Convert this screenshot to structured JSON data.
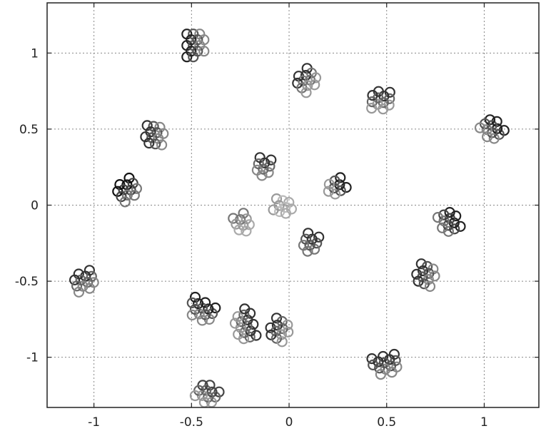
{
  "chart_data": {
    "type": "scatter",
    "title": "",
    "xlabel": "",
    "ylabel": "",
    "xlim": [
      -1.24,
      1.28
    ],
    "ylim": [
      -1.33,
      1.33
    ],
    "grid": true,
    "marker": "open-circle",
    "xticks": [
      {
        "value": -1,
        "label": "-1"
      },
      {
        "value": -0.5,
        "label": "-0.5"
      },
      {
        "value": 0,
        "label": "0"
      },
      {
        "value": 0.5,
        "label": "0.5"
      },
      {
        "value": 1,
        "label": "1"
      }
    ],
    "yticks": [
      {
        "value": 1,
        "label": "1"
      },
      {
        "value": 0.5,
        "label": "0.5"
      },
      {
        "value": 0,
        "label": "0"
      },
      {
        "value": -0.5,
        "label": "-0.5"
      },
      {
        "value": -1,
        "label": "-1"
      }
    ],
    "clusters": [
      {
        "center": [
          -0.48,
          1.05
        ],
        "count": 14,
        "colors": [
          "#222222",
          "#555555",
          "#888888"
        ]
      },
      {
        "center": [
          0.09,
          0.82
        ],
        "count": 12,
        "colors": [
          "#333333",
          "#777777",
          "#999999"
        ]
      },
      {
        "center": [
          0.47,
          0.69
        ],
        "count": 12,
        "colors": [
          "#333333",
          "#666666",
          "#999999"
        ]
      },
      {
        "center": [
          1.04,
          0.5
        ],
        "count": 12,
        "colors": [
          "#222222",
          "#555555",
          "#888888"
        ]
      },
      {
        "center": [
          -0.69,
          0.46
        ],
        "count": 12,
        "colors": [
          "#333333",
          "#555555",
          "#888888"
        ]
      },
      {
        "center": [
          -0.83,
          0.1
        ],
        "count": 12,
        "colors": [
          "#111111",
          "#444444",
          "#777777"
        ]
      },
      {
        "center": [
          -0.13,
          0.25
        ],
        "count": 9,
        "colors": [
          "#333333",
          "#666666",
          "#888888"
        ]
      },
      {
        "center": [
          0.24,
          0.12
        ],
        "count": 9,
        "colors": [
          "#222222",
          "#555555",
          "#999999"
        ]
      },
      {
        "center": [
          -0.03,
          -0.01
        ],
        "count": 9,
        "colors": [
          "#999999",
          "#bbbbbb",
          "#aaaaaa"
        ]
      },
      {
        "center": [
          -0.24,
          -0.12
        ],
        "count": 9,
        "colors": [
          "#777777",
          "#999999",
          "#aaaaaa"
        ]
      },
      {
        "center": [
          0.11,
          -0.25
        ],
        "count": 9,
        "colors": [
          "#333333",
          "#555555",
          "#777777"
        ]
      },
      {
        "center": [
          0.82,
          -0.11
        ],
        "count": 12,
        "colors": [
          "#222222",
          "#444444",
          "#777777"
        ]
      },
      {
        "center": [
          0.7,
          -0.46
        ],
        "count": 12,
        "colors": [
          "#333333",
          "#555555",
          "#888888"
        ]
      },
      {
        "center": [
          -1.05,
          -0.5
        ],
        "count": 12,
        "colors": [
          "#333333",
          "#666666",
          "#888888"
        ]
      },
      {
        "center": [
          -0.45,
          -0.69
        ],
        "count": 14,
        "colors": [
          "#222222",
          "#555555",
          "#888888"
        ]
      },
      {
        "center": [
          -0.23,
          -0.78
        ],
        "count": 16,
        "colors": [
          "#333333",
          "#666666",
          "#999999"
        ]
      },
      {
        "center": [
          -0.05,
          -0.82
        ],
        "count": 12,
        "colors": [
          "#333333",
          "#666666",
          "#999999"
        ]
      },
      {
        "center": [
          0.49,
          -1.05
        ],
        "count": 14,
        "colors": [
          "#333333",
          "#555555",
          "#888888"
        ]
      },
      {
        "center": [
          -0.42,
          -1.24
        ],
        "count": 12,
        "colors": [
          "#444444",
          "#666666",
          "#999999"
        ]
      }
    ]
  }
}
